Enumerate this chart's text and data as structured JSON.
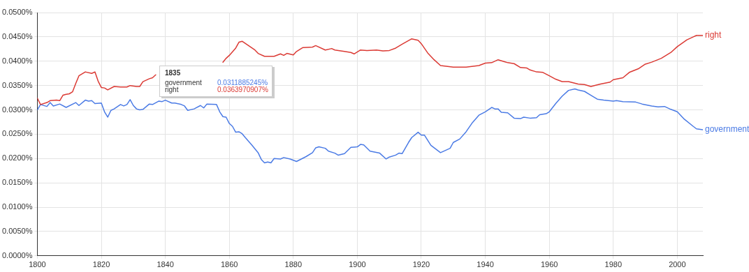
{
  "chart_data": {
    "type": "line",
    "xlim": [
      1800,
      2008
    ],
    "xticks": [
      1800,
      1820,
      1840,
      1860,
      1880,
      1900,
      1920,
      1940,
      1960,
      1980,
      2000
    ],
    "ylim": [
      0,
      0.05
    ],
    "yticks": [
      {
        "value": 0,
        "label": "0.0000%"
      },
      {
        "value": 0.005,
        "label": "0.0050%"
      },
      {
        "value": 0.01,
        "label": "0.0100%"
      },
      {
        "value": 0.015,
        "label": "0.0150%"
      },
      {
        "value": 0.02,
        "label": "0.0200%"
      },
      {
        "value": 0.025,
        "label": "0.0250%"
      },
      {
        "value": 0.03,
        "label": "0.0300%"
      },
      {
        "value": 0.035,
        "label": "0.0350%"
      },
      {
        "value": 0.04,
        "label": "0.0400%"
      },
      {
        "value": 0.045,
        "label": "0.0450%"
      },
      {
        "value": 0.05,
        "label": "0.0500%"
      }
    ],
    "grid": true,
    "legend": false,
    "marker": "none",
    "line_style": "solid",
    "annotations": [
      "1835",
      "0.0311885245%",
      "0.0363970907%"
    ],
    "series": [
      {
        "name": "right",
        "color": "#db3a34",
        "x": [
          1800,
          1801,
          1803,
          1804,
          1806,
          1807,
          1808,
          1809,
          1810,
          1811,
          1812,
          1813,
          1815,
          1817,
          1818,
          1819,
          1820,
          1821,
          1822,
          1824,
          1826,
          1828,
          1829,
          1831,
          1832,
          1833,
          1835,
          1836,
          1837,
          1840,
          1845,
          1850,
          1855,
          1858,
          1859,
          1860,
          1862,
          1863,
          1864,
          1866,
          1868,
          1869,
          1871,
          1874,
          1876,
          1877,
          1878,
          1880,
          1881,
          1883,
          1886,
          1887,
          1890,
          1892,
          1893,
          1896,
          1898,
          1899,
          1901,
          1903,
          1906,
          1908,
          1910,
          1912,
          1914,
          1917,
          1919,
          1920,
          1922,
          1924,
          1926,
          1930,
          1934,
          1938,
          1940,
          1942,
          1944,
          1946,
          1947,
          1949,
          1951,
          1953,
          1954,
          1956,
          1958,
          1960,
          1962,
          1964,
          1966,
          1969,
          1971,
          1973,
          1976,
          1979,
          1980,
          1983,
          1985,
          1988,
          1990,
          1992,
          1995,
          1998,
          2000,
          2003,
          2005,
          2006,
          2008
        ],
        "values": [
          0.0324,
          0.0311,
          0.0315,
          0.0319,
          0.032,
          0.0319,
          0.033,
          0.0332,
          0.0333,
          0.0337,
          0.0354,
          0.037,
          0.0378,
          0.0375,
          0.0378,
          0.0359,
          0.0346,
          0.0345,
          0.0341,
          0.0348,
          0.0347,
          0.0347,
          0.035,
          0.0348,
          0.0348,
          0.0358,
          0.0364,
          0.0366,
          0.0372,
          null,
          null,
          null,
          null,
          0.0398,
          0.0406,
          0.0412,
          0.0427,
          0.0439,
          0.0441,
          0.0432,
          0.0423,
          0.0416,
          0.041,
          0.041,
          0.0415,
          0.0412,
          0.0416,
          0.0413,
          0.042,
          0.0428,
          0.0429,
          0.0432,
          0.0423,
          0.0426,
          0.0423,
          0.042,
          0.0418,
          0.0415,
          0.0423,
          0.0422,
          0.0423,
          0.0421,
          0.0422,
          0.0427,
          0.0435,
          0.0446,
          0.0443,
          0.0436,
          0.0417,
          0.0403,
          0.0391,
          0.0388,
          0.0388,
          0.0391,
          0.0396,
          0.0397,
          0.0403,
          0.0399,
          0.0397,
          0.0395,
          0.0387,
          0.0386,
          0.0382,
          0.0378,
          0.0377,
          0.037,
          0.0363,
          0.0358,
          0.0358,
          0.0353,
          0.0352,
          0.0348,
          0.0353,
          0.0357,
          0.0362,
          0.0366,
          0.0377,
          0.0385,
          0.0394,
          0.0398,
          0.0406,
          0.0418,
          0.043,
          0.0444,
          0.045,
          0.0453,
          0.0453
        ]
      },
      {
        "name": "government",
        "color": "#4b7be5",
        "x": [
          1800,
          1801,
          1803,
          1804,
          1805,
          1807,
          1809,
          1812,
          1813,
          1815,
          1816,
          1817,
          1818,
          1820,
          1821,
          1822,
          1823,
          1824,
          1826,
          1827,
          1828,
          1829,
          1830,
          1831,
          1832,
          1833,
          1835,
          1836,
          1838,
          1839,
          1840,
          1842,
          1843,
          1845,
          1846,
          1847,
          1849,
          1851,
          1852,
          1853,
          1856,
          1857,
          1858,
          1859,
          1860,
          1861,
          1862,
          1863,
          1864,
          1865,
          1867,
          1869,
          1870,
          1871,
          1872,
          1873,
          1874,
          1876,
          1877,
          1879,
          1881,
          1884,
          1886,
          1887,
          1888,
          1890,
          1891,
          1893,
          1894,
          1896,
          1898,
          1900,
          1901,
          1902,
          1904,
          1907,
          1909,
          1910,
          1912,
          1913,
          1914,
          1916,
          1917,
          1919,
          1920,
          1921,
          1923,
          1924,
          1926,
          1929,
          1930,
          1932,
          1934,
          1936,
          1938,
          1940,
          1942,
          1943,
          1944,
          1945,
          1947,
          1949,
          1951,
          1952,
          1954,
          1956,
          1957,
          1959,
          1960,
          1962,
          1964,
          1966,
          1968,
          1969,
          1971,
          1973,
          1975,
          1977,
          1980,
          1981,
          1983,
          1987,
          1989,
          1992,
          1994,
          1996,
          1998,
          2000,
          2002,
          2005,
          2006,
          2008
        ],
        "values": [
          0.03,
          0.0311,
          0.0307,
          0.0315,
          0.0308,
          0.0312,
          0.0305,
          0.0315,
          0.0309,
          0.032,
          0.0318,
          0.0319,
          0.0313,
          0.0314,
          0.0296,
          0.0285,
          0.0299,
          0.0302,
          0.0311,
          0.0308,
          0.0311,
          0.0321,
          0.0309,
          0.0302,
          0.03,
          0.0301,
          0.0312,
          0.0311,
          0.0318,
          0.0317,
          0.032,
          0.0314,
          0.0314,
          0.0311,
          0.0308,
          0.0299,
          0.0302,
          0.0309,
          0.0304,
          0.0312,
          0.0311,
          0.0296,
          0.0286,
          0.0285,
          0.0272,
          0.0266,
          0.0254,
          0.0255,
          0.0251,
          0.0243,
          0.0228,
          0.0212,
          0.0198,
          0.0191,
          0.0193,
          0.0191,
          0.02,
          0.0199,
          0.0202,
          0.0199,
          0.0194,
          0.0204,
          0.0212,
          0.0222,
          0.0224,
          0.0221,
          0.0215,
          0.0211,
          0.0207,
          0.021,
          0.0223,
          0.0224,
          0.0229,
          0.0228,
          0.0215,
          0.0211,
          0.0199,
          0.0203,
          0.0207,
          0.0211,
          0.021,
          0.0233,
          0.0243,
          0.0254,
          0.0248,
          0.0248,
          0.0227,
          0.0222,
          0.0212,
          0.0221,
          0.0233,
          0.024,
          0.0255,
          0.0274,
          0.0289,
          0.0296,
          0.0305,
          0.0302,
          0.0302,
          0.0295,
          0.0294,
          0.0283,
          0.0282,
          0.0285,
          0.0283,
          0.0284,
          0.029,
          0.0292,
          0.0296,
          0.0313,
          0.0328,
          0.034,
          0.0343,
          0.0341,
          0.0338,
          0.033,
          0.0322,
          0.032,
          0.0318,
          0.0319,
          0.0317,
          0.0316,
          0.0312,
          0.0308,
          0.0306,
          0.0307,
          0.0301,
          0.0296,
          0.0282,
          0.0266,
          0.0261,
          0.0259
        ]
      }
    ]
  }
}
